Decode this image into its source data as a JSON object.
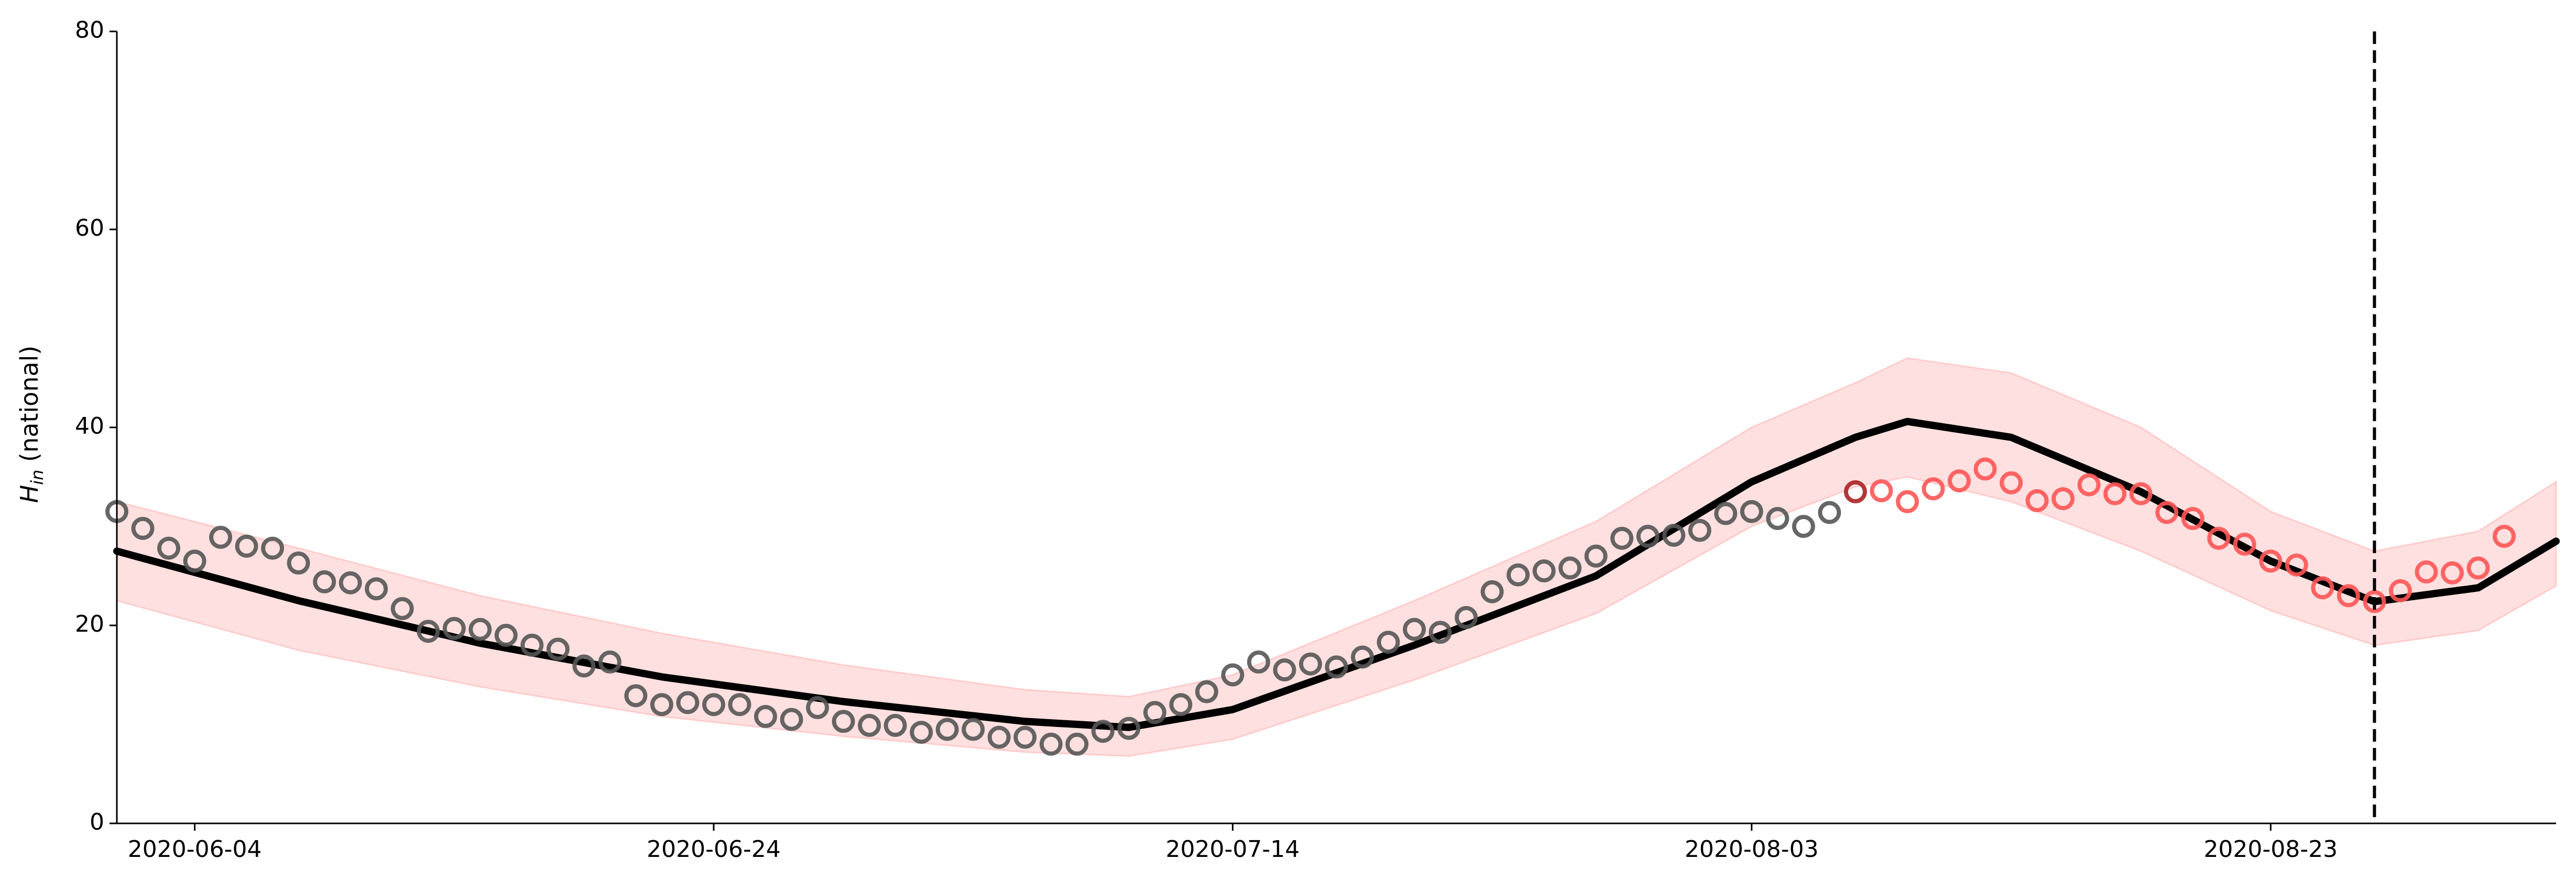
{
  "chart_data": {
    "type": "line",
    "ylabel_main": "H",
    "ylabel_sub": "in",
    "ylabel_rest": " (national)",
    "ylim": [
      0,
      80
    ],
    "yticks": [
      0,
      20,
      40,
      60,
      80
    ],
    "xlim": [
      "2020-06-01",
      "2020-09-03"
    ],
    "xticks": [
      "2020-06-04",
      "2020-06-24",
      "2020-07-14",
      "2020-08-03",
      "2020-08-23"
    ],
    "vline_date": "2020-08-27",
    "grid": false,
    "colors": {
      "observed": "#555555",
      "future": "#ff5555",
      "highlight": "#aa2222",
      "fit_line": "#000000",
      "band": "#ffcccc"
    },
    "observed": {
      "start_date": "2020-06-01",
      "values": [
        31.5,
        29.8,
        27.8,
        26.5,
        28.9,
        28.0,
        27.8,
        26.3,
        24.4,
        24.3,
        23.7,
        21.7,
        19.4,
        19.7,
        19.6,
        19.0,
        18.0,
        17.6,
        15.9,
        16.3,
        12.9,
        12.0,
        12.2,
        12.0,
        12.0,
        10.8,
        10.5,
        11.7,
        10.3,
        9.9,
        9.9,
        9.2,
        9.5,
        9.5,
        8.7,
        8.7,
        8.0,
        8.0,
        9.3,
        9.6,
        11.2,
        12.0,
        13.3,
        15.0,
        16.3,
        15.5,
        16.1,
        15.8,
        16.8,
        18.3,
        19.6,
        19.3,
        20.8,
        23.4,
        25.1,
        25.5,
        25.8,
        27.0,
        28.8,
        29.0,
        29.1,
        29.6,
        31.3,
        31.5,
        30.8,
        30.0,
        31.4
      ]
    },
    "future": {
      "start_date": "2020-08-07",
      "values": [
        33.5,
        33.6,
        32.5,
        33.8,
        34.6,
        35.8,
        34.4,
        32.6,
        32.8,
        34.2,
        33.3,
        33.3,
        31.4,
        30.8,
        28.8,
        28.2,
        26.5,
        26.1,
        23.8,
        23.0,
        22.4,
        23.5,
        25.4,
        25.3,
        25.8,
        29.0
      ]
    },
    "fit": {
      "dates": [
        "2020-06-01",
        "2020-06-08",
        "2020-06-15",
        "2020-06-22",
        "2020-06-29",
        "2020-07-06",
        "2020-07-10",
        "2020-07-14",
        "2020-07-21",
        "2020-07-28",
        "2020-08-03",
        "2020-08-07",
        "2020-08-09",
        "2020-08-13",
        "2020-08-18",
        "2020-08-23",
        "2020-08-27",
        "2020-08-31",
        "2020-09-03"
      ],
      "y": [
        27.5,
        22.5,
        18.2,
        14.8,
        12.3,
        10.3,
        9.7,
        11.5,
        18.0,
        25.0,
        34.5,
        39.0,
        40.6,
        39.0,
        33.5,
        26.5,
        22.4,
        23.8,
        28.5
      ],
      "lower": [
        22.5,
        17.5,
        13.8,
        10.8,
        8.8,
        7.2,
        6.8,
        8.5,
        14.5,
        21.2,
        30.0,
        34.0,
        35.0,
        32.5,
        27.5,
        21.5,
        18.0,
        19.5,
        24.0
      ],
      "upper": [
        32.5,
        27.8,
        23.0,
        19.2,
        16.0,
        13.5,
        12.8,
        15.0,
        22.5,
        30.5,
        40.0,
        44.5,
        47.0,
        45.5,
        40.0,
        31.5,
        27.5,
        29.5,
        34.5
      ]
    }
  }
}
